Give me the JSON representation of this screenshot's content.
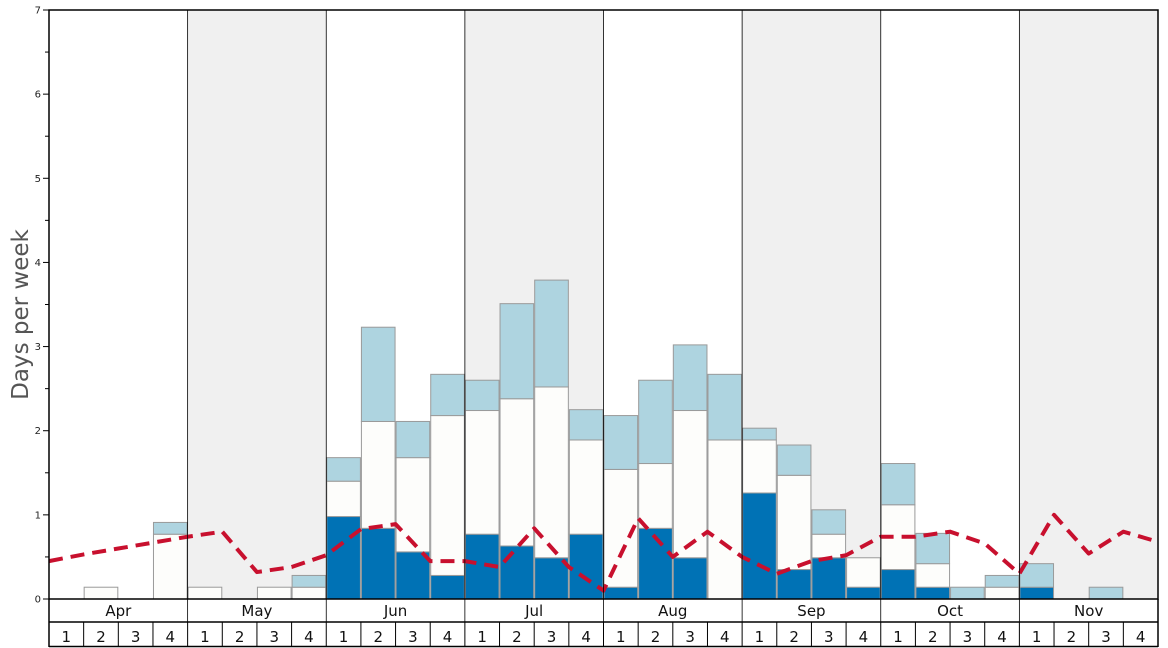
{
  "chart_data": {
    "type": "bar",
    "ylabel": "Days per week",
    "ylim": [
      0,
      7
    ],
    "yticks": [
      "0",
      "1",
      "2",
      "3",
      "4",
      "5",
      "6",
      "7"
    ],
    "months": [
      "Apr",
      "May",
      "Jun",
      "Jul",
      "Aug",
      "Sep",
      "Oct",
      "Nov"
    ],
    "week_labels": [
      "1",
      "2",
      "3",
      "4"
    ],
    "stack_order": [
      "dark_blue",
      "white",
      "light_blue"
    ],
    "colors": {
      "dark_blue": "#0072b5",
      "white": "#fdfdfb",
      "light_blue": "#aed4e0",
      "line": "#c8102e",
      "band": "#f0f0f0",
      "bar_edge": "#9a9a9a"
    },
    "weeks": [
      {
        "month": "Apr",
        "week": "1",
        "dark_blue": 0,
        "white": 0,
        "light_blue": 0
      },
      {
        "month": "Apr",
        "week": "2",
        "dark_blue": 0,
        "white": 0.14,
        "light_blue": 0
      },
      {
        "month": "Apr",
        "week": "3",
        "dark_blue": 0,
        "white": 0,
        "light_blue": 0
      },
      {
        "month": "Apr",
        "week": "4",
        "dark_blue": 0,
        "white": 0.77,
        "light_blue": 0.14
      },
      {
        "month": "May",
        "week": "1",
        "dark_blue": 0,
        "white": 0.14,
        "light_blue": 0
      },
      {
        "month": "May",
        "week": "2",
        "dark_blue": 0,
        "white": 0,
        "light_blue": 0
      },
      {
        "month": "May",
        "week": "3",
        "dark_blue": 0,
        "white": 0.14,
        "light_blue": 0
      },
      {
        "month": "May",
        "week": "4",
        "dark_blue": 0,
        "white": 0.14,
        "light_blue": 0.14
      },
      {
        "month": "Jun",
        "week": "1",
        "dark_blue": 0.98,
        "white": 0.42,
        "light_blue": 0.28
      },
      {
        "month": "Jun",
        "week": "2",
        "dark_blue": 0.84,
        "white": 1.27,
        "light_blue": 1.12
      },
      {
        "month": "Jun",
        "week": "3",
        "dark_blue": 0.56,
        "white": 1.12,
        "light_blue": 0.43
      },
      {
        "month": "Jun",
        "week": "4",
        "dark_blue": 0.28,
        "white": 1.9,
        "light_blue": 0.49
      },
      {
        "month": "Jul",
        "week": "1",
        "dark_blue": 0.77,
        "white": 1.47,
        "light_blue": 0.36
      },
      {
        "month": "Jul",
        "week": "2",
        "dark_blue": 0.63,
        "white": 1.75,
        "light_blue": 1.13
      },
      {
        "month": "Jul",
        "week": "3",
        "dark_blue": 0.49,
        "white": 2.03,
        "light_blue": 1.27
      },
      {
        "month": "Jul",
        "week": "4",
        "dark_blue": 0.77,
        "white": 1.12,
        "light_blue": 0.36
      },
      {
        "month": "Aug",
        "week": "1",
        "dark_blue": 0.14,
        "white": 1.4,
        "light_blue": 0.64
      },
      {
        "month": "Aug",
        "week": "2",
        "dark_blue": 0.84,
        "white": 0.77,
        "light_blue": 0.99
      },
      {
        "month": "Aug",
        "week": "3",
        "dark_blue": 0.49,
        "white": 1.75,
        "light_blue": 0.78
      },
      {
        "month": "Aug",
        "week": "4",
        "dark_blue": 0,
        "white": 1.89,
        "light_blue": 0.78
      },
      {
        "month": "Sep",
        "week": "1",
        "dark_blue": 1.26,
        "white": 0.63,
        "light_blue": 0.14
      },
      {
        "month": "Sep",
        "week": "2",
        "dark_blue": 0.35,
        "white": 1.12,
        "light_blue": 0.36
      },
      {
        "month": "Sep",
        "week": "3",
        "dark_blue": 0.49,
        "white": 0.28,
        "light_blue": 0.29
      },
      {
        "month": "Sep",
        "week": "4",
        "dark_blue": 0.14,
        "white": 0.35,
        "light_blue": 0
      },
      {
        "month": "Oct",
        "week": "1",
        "dark_blue": 0.35,
        "white": 0.77,
        "light_blue": 0.49
      },
      {
        "month": "Oct",
        "week": "2",
        "dark_blue": 0.14,
        "white": 0.28,
        "light_blue": 0.36
      },
      {
        "month": "Oct",
        "week": "3",
        "dark_blue": 0,
        "white": 0,
        "light_blue": 0.14
      },
      {
        "month": "Oct",
        "week": "4",
        "dark_blue": 0,
        "white": 0.14,
        "light_blue": 0.14
      },
      {
        "month": "Nov",
        "week": "1",
        "dark_blue": 0.14,
        "white": 0,
        "light_blue": 0.28
      },
      {
        "month": "Nov",
        "week": "2",
        "dark_blue": 0,
        "white": 0,
        "light_blue": 0
      },
      {
        "month": "Nov",
        "week": "3",
        "dark_blue": 0,
        "white": 0,
        "light_blue": 0.14
      },
      {
        "month": "Nov",
        "week": "4",
        "dark_blue": 0,
        "white": 0,
        "light_blue": 0
      }
    ],
    "line_series": {
      "style": "dashed",
      "x_position": "start-of-week",
      "values": [
        0.45,
        0.53,
        0.6,
        0.67,
        0.74,
        0.8,
        0.32,
        0.38,
        0.52,
        0.83,
        0.89,
        0.45,
        0.45,
        0.38,
        0.84,
        0.38,
        0.1,
        0.96,
        0.5,
        0.8,
        0.5,
        0.3,
        0.45,
        0.52,
        0.74,
        0.74,
        0.8,
        0.66,
        0.3,
        1.0,
        0.54,
        0.8,
        0.68
      ]
    },
    "legend": "none",
    "grid": false
  }
}
